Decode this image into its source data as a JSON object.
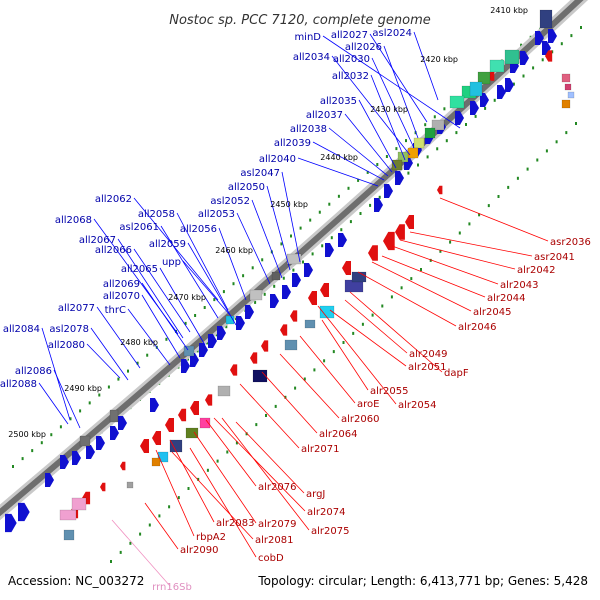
{
  "title": "Nostoc sp. PCC 7120, complete genome",
  "footer": {
    "accession": "Accession: NC_003272",
    "summary": "Topology: circular; Length: 6,413,771 bp; Genes: 5,428"
  },
  "colors": {
    "forward": "#1010d0",
    "reverse": "#e01010",
    "forward_label": "#0000aa",
    "reverse_label": "#aa0000",
    "rrna": "#f0a0d0",
    "backbone": "#7a7a7a",
    "tick": "#228822"
  },
  "kbp_ticks": [
    "2410 kbp",
    "2420 kbp",
    "2430 kbp",
    "2440 kbp",
    "2450 kbp",
    "2460 kbp",
    "2470 kbp",
    "2480 kbp",
    "2490 kbp",
    "2500 kbp"
  ],
  "forward_labels": [
    "minD",
    "all2027",
    "asl2024",
    "all2026",
    "all2030",
    "all2034",
    "all2032",
    "all2035",
    "all2037",
    "all2038",
    "all2039",
    "all2040",
    "asl2047",
    "all2050",
    "asl2052",
    "all2053",
    "all2062",
    "all2058",
    "all2056",
    "asl2061",
    "all2068",
    "all2067",
    "all2059",
    "upp",
    "all2066",
    "all2065",
    "all2069",
    "all2070",
    "thrC",
    "all2077",
    "all2084",
    "asl2078",
    "all2080",
    "all2086",
    "all2088"
  ],
  "reverse_labels": [
    "asr2036",
    "asr2041",
    "alr2042",
    "alr2043",
    "alr2044",
    "alr2045",
    "alr2046",
    "alr2049",
    "dapF",
    "alr2051",
    "alr2055",
    "aroE",
    "alr2054",
    "alr2060",
    "alr2064",
    "alr2071",
    "argJ",
    "alr2076",
    "alr2074",
    "alr2079",
    "alr2075",
    "alr2083",
    "rbpA2",
    "alr2081",
    "cobD",
    "alr2090"
  ],
  "rrna_labels": [
    "rrn16Sb"
  ]
}
